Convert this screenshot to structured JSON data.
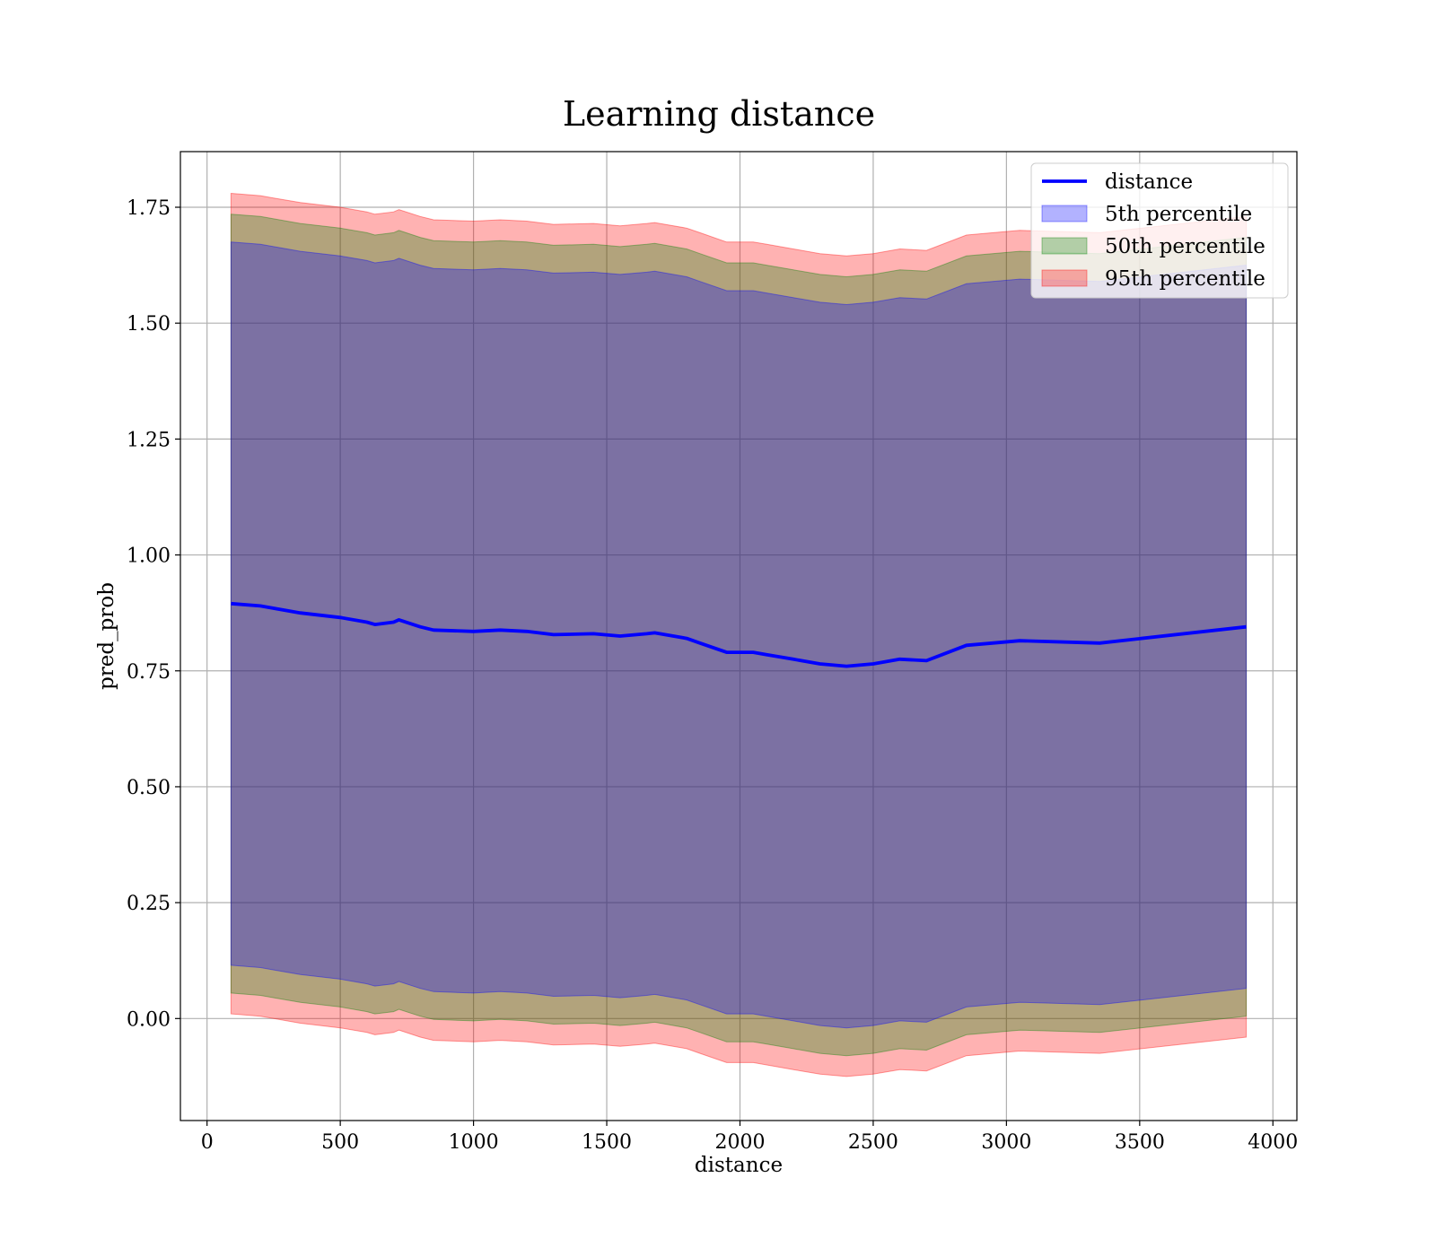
{
  "chart_data": {
    "type": "line",
    "title": "Learning distance",
    "xlabel": "distance",
    "ylabel": "pred_prob",
    "xlim": [
      -100,
      4090
    ],
    "ylim": [
      -0.22,
      1.87
    ],
    "xticks": [
      0,
      500,
      1000,
      1500,
      2000,
      2500,
      3000,
      3500,
      4000
    ],
    "xtick_labels": [
      "0",
      "500",
      "1000",
      "1500",
      "2000",
      "2500",
      "3000",
      "3500",
      "4000"
    ],
    "yticks": [
      0.0,
      0.25,
      0.5,
      0.75,
      1.0,
      1.25,
      1.5,
      1.75
    ],
    "ytick_labels": [
      "0.00",
      "0.25",
      "0.50",
      "0.75",
      "1.00",
      "1.25",
      "1.50",
      "1.75"
    ],
    "grid": true,
    "legend_position": "top-right",
    "x": [
      90,
      200,
      250,
      350,
      500,
      600,
      630,
      700,
      720,
      800,
      850,
      1000,
      1100,
      1200,
      1300,
      1450,
      1550,
      1650,
      1680,
      1800,
      1850,
      1950,
      2050,
      2100,
      2200,
      2300,
      2400,
      2500,
      2600,
      2700,
      2850,
      3050,
      3350,
      3900
    ],
    "series": [
      {
        "name": "distance",
        "kind": "line",
        "color": "#0000ff",
        "values": [
          0.895,
          0.89,
          0.885,
          0.875,
          0.865,
          0.855,
          0.85,
          0.855,
          0.86,
          0.845,
          0.838,
          0.835,
          0.838,
          0.835,
          0.828,
          0.83,
          0.825,
          0.83,
          0.832,
          0.82,
          0.81,
          0.79,
          0.79,
          0.785,
          0.775,
          0.765,
          0.76,
          0.765,
          0.775,
          0.772,
          0.805,
          0.815,
          0.81,
          0.845
        ]
      },
      {
        "name": "5th percentile",
        "kind": "band",
        "color": "#0000ff",
        "alpha": 0.3,
        "half_width": 0.78
      },
      {
        "name": "50th percentile",
        "kind": "band",
        "color": "#008000",
        "alpha": 0.3,
        "half_width": 0.84
      },
      {
        "name": "95th percentile",
        "kind": "band",
        "color": "#ff0000",
        "alpha": 0.3,
        "half_width": 0.885
      }
    ]
  }
}
